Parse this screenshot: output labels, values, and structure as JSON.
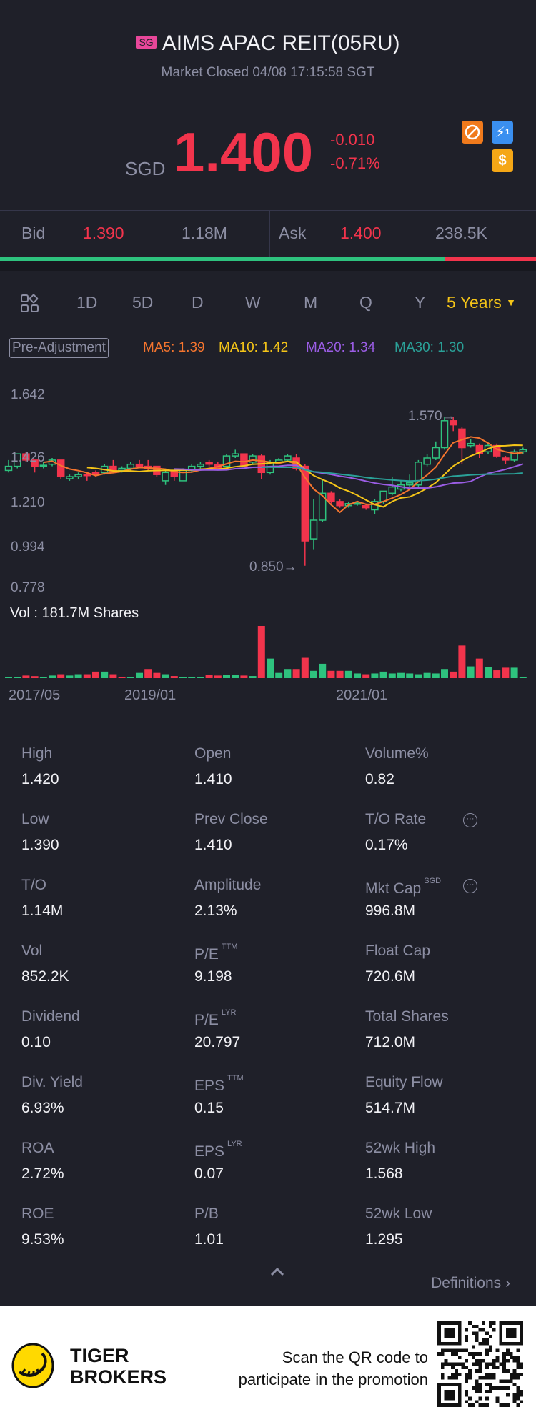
{
  "header": {
    "market_badge": "SG",
    "title": "AIMS APAC REIT(05RU)",
    "status": "Market Closed 04/08 17:15:58 SGT",
    "currency": "SGD",
    "price": "1.400",
    "change": "-0.010",
    "change_pct": "-0.71%",
    "icons": [
      "no-margin-icon",
      "flash-icon",
      "dollar-icon"
    ],
    "flash_badge_num": "1",
    "dollar_glyph": "$"
  },
  "quote": {
    "bid_label": "Bid",
    "bid_price": "1.390",
    "bid_size": "1.18M",
    "ask_label": "Ask",
    "ask_price": "1.400",
    "ask_size": "238.5K",
    "bid_share_pct": 83
  },
  "tabs": {
    "items": [
      "1D",
      "5D",
      "D",
      "W",
      "M",
      "Q",
      "Y"
    ],
    "active": "5 Years"
  },
  "indicators": {
    "adjust": "Pre-Adjustment",
    "ma5": "MA5: 1.39",
    "ma10": "MA10: 1.42",
    "ma20": "MA20: 1.34",
    "ma30": "MA30: 1.30"
  },
  "colors": {
    "up": "#2ec27e",
    "down": "#f2344c",
    "ma5": "#f5752e",
    "ma10": "#f5c518",
    "ma20": "#9b5de5",
    "ma30": "#2aa198",
    "accent": "#f5c518"
  },
  "chart_data": {
    "type": "candlestick",
    "y_ticks": [
      "1.642",
      "1.426",
      "1.210",
      "0.994",
      "0.778"
    ],
    "ylim": [
      0.778,
      1.642
    ],
    "high_label": "1.570",
    "low_label": "0.850",
    "x_ticks": [
      "2017/05",
      "2019/01",
      "2021/01"
    ],
    "volume_label": "Vol  : 181.7M Shares",
    "ohlc": [
      [
        1.31,
        1.36,
        1.3,
        1.33
      ],
      [
        1.33,
        1.39,
        1.32,
        1.39
      ],
      [
        1.39,
        1.4,
        1.35,
        1.36
      ],
      [
        1.36,
        1.36,
        1.3,
        1.33
      ],
      [
        1.33,
        1.35,
        1.32,
        1.335
      ],
      [
        1.34,
        1.37,
        1.33,
        1.36
      ],
      [
        1.36,
        1.36,
        1.27,
        1.28
      ],
      [
        1.27,
        1.29,
        1.26,
        1.28
      ],
      [
        1.28,
        1.3,
        1.27,
        1.29
      ],
      [
        1.29,
        1.3,
        1.26,
        1.285
      ],
      [
        1.3,
        1.31,
        1.28,
        1.29
      ],
      [
        1.3,
        1.34,
        1.29,
        1.33
      ],
      [
        1.33,
        1.36,
        1.3,
        1.3
      ],
      [
        1.31,
        1.33,
        1.3,
        1.32
      ],
      [
        1.32,
        1.35,
        1.31,
        1.34
      ],
      [
        1.34,
        1.36,
        1.32,
        1.33
      ],
      [
        1.33,
        1.36,
        1.31,
        1.32
      ],
      [
        1.33,
        1.33,
        1.28,
        1.29
      ],
      [
        1.26,
        1.31,
        1.24,
        1.3
      ],
      [
        1.31,
        1.32,
        1.26,
        1.28
      ],
      [
        1.26,
        1.32,
        1.26,
        1.31
      ],
      [
        1.31,
        1.34,
        1.3,
        1.33
      ],
      [
        1.33,
        1.35,
        1.32,
        1.34
      ],
      [
        1.35,
        1.36,
        1.33,
        1.34
      ],
      [
        1.34,
        1.35,
        1.31,
        1.32
      ],
      [
        1.33,
        1.39,
        1.32,
        1.38
      ],
      [
        1.38,
        1.41,
        1.37,
        1.39
      ],
      [
        1.39,
        1.39,
        1.33,
        1.33
      ],
      [
        1.35,
        1.39,
        1.34,
        1.38
      ],
      [
        1.38,
        1.39,
        1.27,
        1.3
      ],
      [
        1.3,
        1.36,
        1.29,
        1.35
      ],
      [
        1.35,
        1.37,
        1.34,
        1.36
      ],
      [
        1.36,
        1.39,
        1.35,
        1.38
      ],
      [
        1.37,
        1.39,
        1.31,
        1.32
      ],
      [
        1.33,
        1.34,
        0.85,
        0.97
      ],
      [
        0.98,
        1.17,
        0.93,
        1.07
      ],
      [
        1.07,
        1.27,
        1.06,
        1.2
      ],
      [
        1.2,
        1.21,
        1.15,
        1.16
      ],
      [
        1.16,
        1.17,
        1.13,
        1.14
      ],
      [
        1.14,
        1.16,
        1.13,
        1.15
      ],
      [
        1.15,
        1.16,
        1.14,
        1.152
      ],
      [
        1.14,
        1.15,
        1.12,
        1.13
      ],
      [
        1.12,
        1.17,
        1.1,
        1.16
      ],
      [
        1.16,
        1.21,
        1.15,
        1.21
      ],
      [
        1.2,
        1.28,
        1.19,
        1.23
      ],
      [
        1.22,
        1.26,
        1.21,
        1.24
      ],
      [
        1.24,
        1.29,
        1.23,
        1.25
      ],
      [
        1.24,
        1.36,
        1.23,
        1.35
      ],
      [
        1.34,
        1.39,
        1.33,
        1.37
      ],
      [
        1.37,
        1.45,
        1.36,
        1.42
      ],
      [
        1.42,
        1.57,
        1.41,
        1.55
      ],
      [
        1.55,
        1.57,
        1.5,
        1.53
      ],
      [
        1.51,
        1.52,
        1.34,
        1.42
      ],
      [
        1.43,
        1.46,
        1.42,
        1.44
      ],
      [
        1.43,
        1.44,
        1.37,
        1.39
      ],
      [
        1.4,
        1.44,
        1.39,
        1.43
      ],
      [
        1.43,
        1.44,
        1.37,
        1.38
      ],
      [
        1.37,
        1.38,
        1.34,
        1.36
      ],
      [
        1.36,
        1.41,
        1.35,
        1.4
      ],
      [
        1.4,
        1.42,
        1.39,
        1.41
      ]
    ],
    "volume_m": [
      4.5,
      4.5,
      9,
      7,
      4.5,
      9,
      13.6,
      9,
      13.6,
      13.6,
      22.7,
      22.7,
      13.6,
      4.5,
      4.5,
      18.2,
      31.8,
      18.2,
      13.6,
      7.3,
      4.5,
      4.5,
      4.5,
      10.9,
      9,
      10.9,
      10.9,
      9,
      7.3,
      181.7,
      68.1,
      18.2,
      31.8,
      31.8,
      70.8,
      25.4,
      50,
      25.4,
      25.4,
      25.4,
      16.3,
      13.6,
      16.3,
      22.7,
      16.3,
      18.2,
      16.3,
      13.6,
      18.2,
      16.3,
      31.8,
      22.7,
      113.6,
      40.9,
      68.1,
      38.2,
      27.3,
      36.3,
      36.3,
      2.7
    ],
    "volume_up": [
      1,
      1,
      0,
      0,
      1,
      1,
      0,
      1,
      1,
      0,
      0,
      1,
      0,
      0,
      1,
      1,
      0,
      0,
      1,
      0,
      1,
      1,
      1,
      0,
      0,
      1,
      1,
      0,
      1,
      0,
      1,
      1,
      1,
      0,
      0,
      1,
      1,
      0,
      0,
      1,
      1,
      0,
      1,
      1,
      1,
      1,
      1,
      1,
      1,
      1,
      1,
      0,
      0,
      1,
      0,
      1,
      0,
      0,
      1,
      1
    ]
  },
  "stats": [
    {
      "label": "High",
      "value": "1.420"
    },
    {
      "label": "Open",
      "value": "1.410"
    },
    {
      "label": "Volume%",
      "value": "0.82"
    },
    {
      "label": "Low",
      "value": "1.390"
    },
    {
      "label": "Prev Close",
      "value": "1.410"
    },
    {
      "label": "T/O Rate",
      "value": "0.17%",
      "info": true
    },
    {
      "label": "T/O",
      "value": "1.14M"
    },
    {
      "label": "Amplitude",
      "value": "2.13%"
    },
    {
      "label": "Mkt Cap",
      "sup": "SGD",
      "value": "996.8M",
      "info": true
    },
    {
      "label": "Vol",
      "value": "852.2K"
    },
    {
      "label": "P/E",
      "sup": "TTM",
      "value": "9.198"
    },
    {
      "label": "Float Cap",
      "value": "720.6M"
    },
    {
      "label": "Dividend",
      "value": "0.10"
    },
    {
      "label": "P/E",
      "sup": "LYR",
      "value": "20.797"
    },
    {
      "label": "Total Shares",
      "value": "712.0M"
    },
    {
      "label": "Div. Yield",
      "value": "6.93%"
    },
    {
      "label": "EPS",
      "sup": "TTM",
      "value": "0.15"
    },
    {
      "label": "Equity Flow",
      "value": "514.7M"
    },
    {
      "label": "ROA",
      "value": "2.72%"
    },
    {
      "label": "EPS",
      "sup": "LYR",
      "value": "0.07"
    },
    {
      "label": "52wk High",
      "value": "1.568"
    },
    {
      "label": "ROE",
      "value": "9.53%"
    },
    {
      "label": "P/B",
      "value": "1.01"
    },
    {
      "label": "52wk Low",
      "value": "1.295"
    }
  ],
  "info_glyph": "···",
  "definitions": "Definitions",
  "footer": {
    "brand_line1": "TIGER",
    "brand_line2": "BROKERS",
    "promo_line1": "Scan the QR code to",
    "promo_line2": "participate in the promotion"
  }
}
